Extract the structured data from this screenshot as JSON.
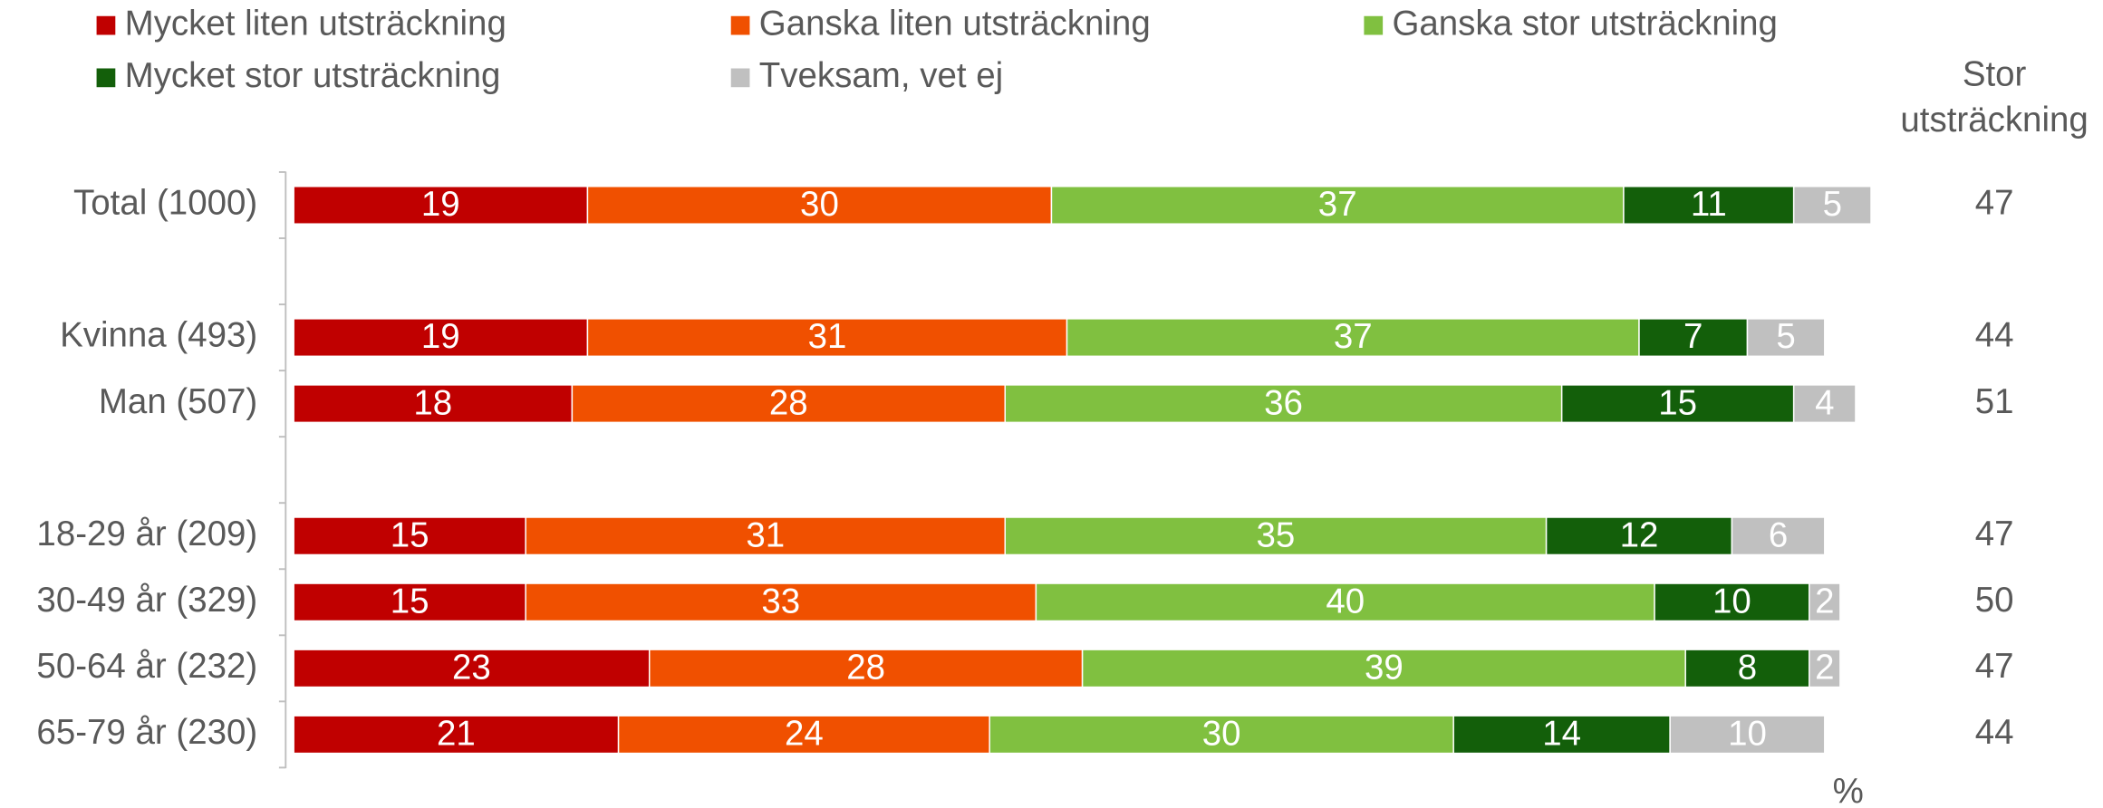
{
  "chart_data": {
    "type": "stacked_bar_horizontal",
    "categories": [
      "Total (1000)",
      null,
      "Kvinna (493)",
      "Man (507)",
      null,
      "18-29 år (209)",
      "30-49 år (329)",
      "50-64 år (232)",
      "65-79 år (230)"
    ],
    "series": [
      {
        "name": "Mycket liten utsträckning",
        "color": "#c00000",
        "values": [
          19,
          null,
          19,
          18,
          null,
          15,
          15,
          23,
          21
        ]
      },
      {
        "name": "Ganska liten utsträckning",
        "color": "#f05000",
        "values": [
          30,
          null,
          31,
          28,
          null,
          31,
          33,
          28,
          24
        ]
      },
      {
        "name": "Ganska stor utsträckning",
        "color": "#80c040",
        "values": [
          37,
          null,
          37,
          36,
          null,
          35,
          40,
          39,
          30
        ]
      },
      {
        "name": "Mycket stor utsträckning",
        "color": "#135f0a",
        "values": [
          11,
          null,
          7,
          15,
          null,
          12,
          10,
          8,
          14
        ]
      },
      {
        "name": "Tveksam, vet ej",
        "color": "#c0c0c0",
        "values": [
          5,
          null,
          5,
          4,
          null,
          6,
          2,
          2,
          10
        ]
      }
    ],
    "xlim": [
      0,
      100
    ],
    "x_label": "%",
    "side_column": {
      "title_lines": [
        "Stor",
        "utsträckning"
      ],
      "values": [
        47,
        null,
        44,
        51,
        null,
        47,
        50,
        47,
        44
      ]
    }
  }
}
